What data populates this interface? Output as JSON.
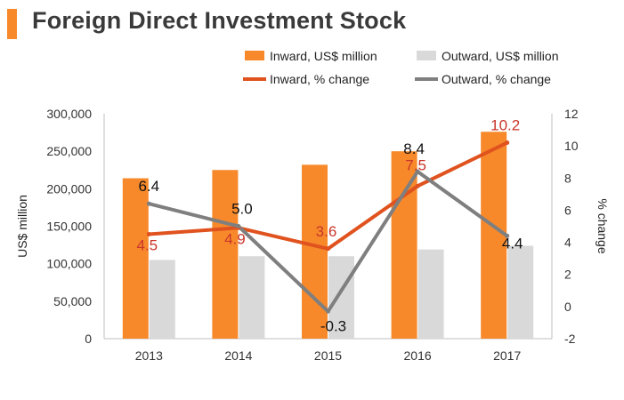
{
  "header": {
    "title": "Foreign Direct Investment Stock"
  },
  "colors": {
    "inward_bar": "#f7892b",
    "outward_bar": "#d9d9d9",
    "inward_line": "#e0521e",
    "outward_line": "#7f7f7f",
    "inward_label": "#c9362a",
    "outward_label": "#111111",
    "title_accent": "#f7892b"
  },
  "chart_data": {
    "type": "bar",
    "title": "Foreign Direct Investment Stock",
    "categories": [
      "2013",
      "2014",
      "2015",
      "2016",
      "2017"
    ],
    "series": [
      {
        "name": "Inward, US$ million",
        "kind": "bar",
        "axis": "left",
        "values": [
          214000,
          225000,
          232000,
          250000,
          276000
        ]
      },
      {
        "name": "Outward, US$ million",
        "kind": "bar",
        "axis": "left",
        "values": [
          105000,
          110000,
          110000,
          119000,
          124000
        ]
      },
      {
        "name": "Inward, % change",
        "kind": "line",
        "axis": "right",
        "values": [
          4.5,
          4.9,
          3.6,
          7.5,
          10.2
        ],
        "labels": [
          "4.5",
          "4.9",
          "3.6",
          "7.5",
          "10.2"
        ]
      },
      {
        "name": "Outward, % change",
        "kind": "line",
        "axis": "right",
        "values": [
          6.4,
          5.0,
          -0.3,
          8.4,
          4.4
        ],
        "labels": [
          "6.4",
          "5.0",
          "-0.3",
          "8.4",
          "4.4"
        ]
      }
    ],
    "ylabel": "US$ million",
    "ylim": [
      0,
      300000
    ],
    "yticks": [
      "0",
      "50,000",
      "100,000",
      "150,000",
      "200,000",
      "250,000",
      "300,000"
    ],
    "y2label": "% change",
    "y2lim": [
      -2,
      12
    ],
    "y2ticks": [
      "-2",
      "0",
      "2",
      "4",
      "6",
      "8",
      "10",
      "12"
    ],
    "legend_position": "top"
  }
}
